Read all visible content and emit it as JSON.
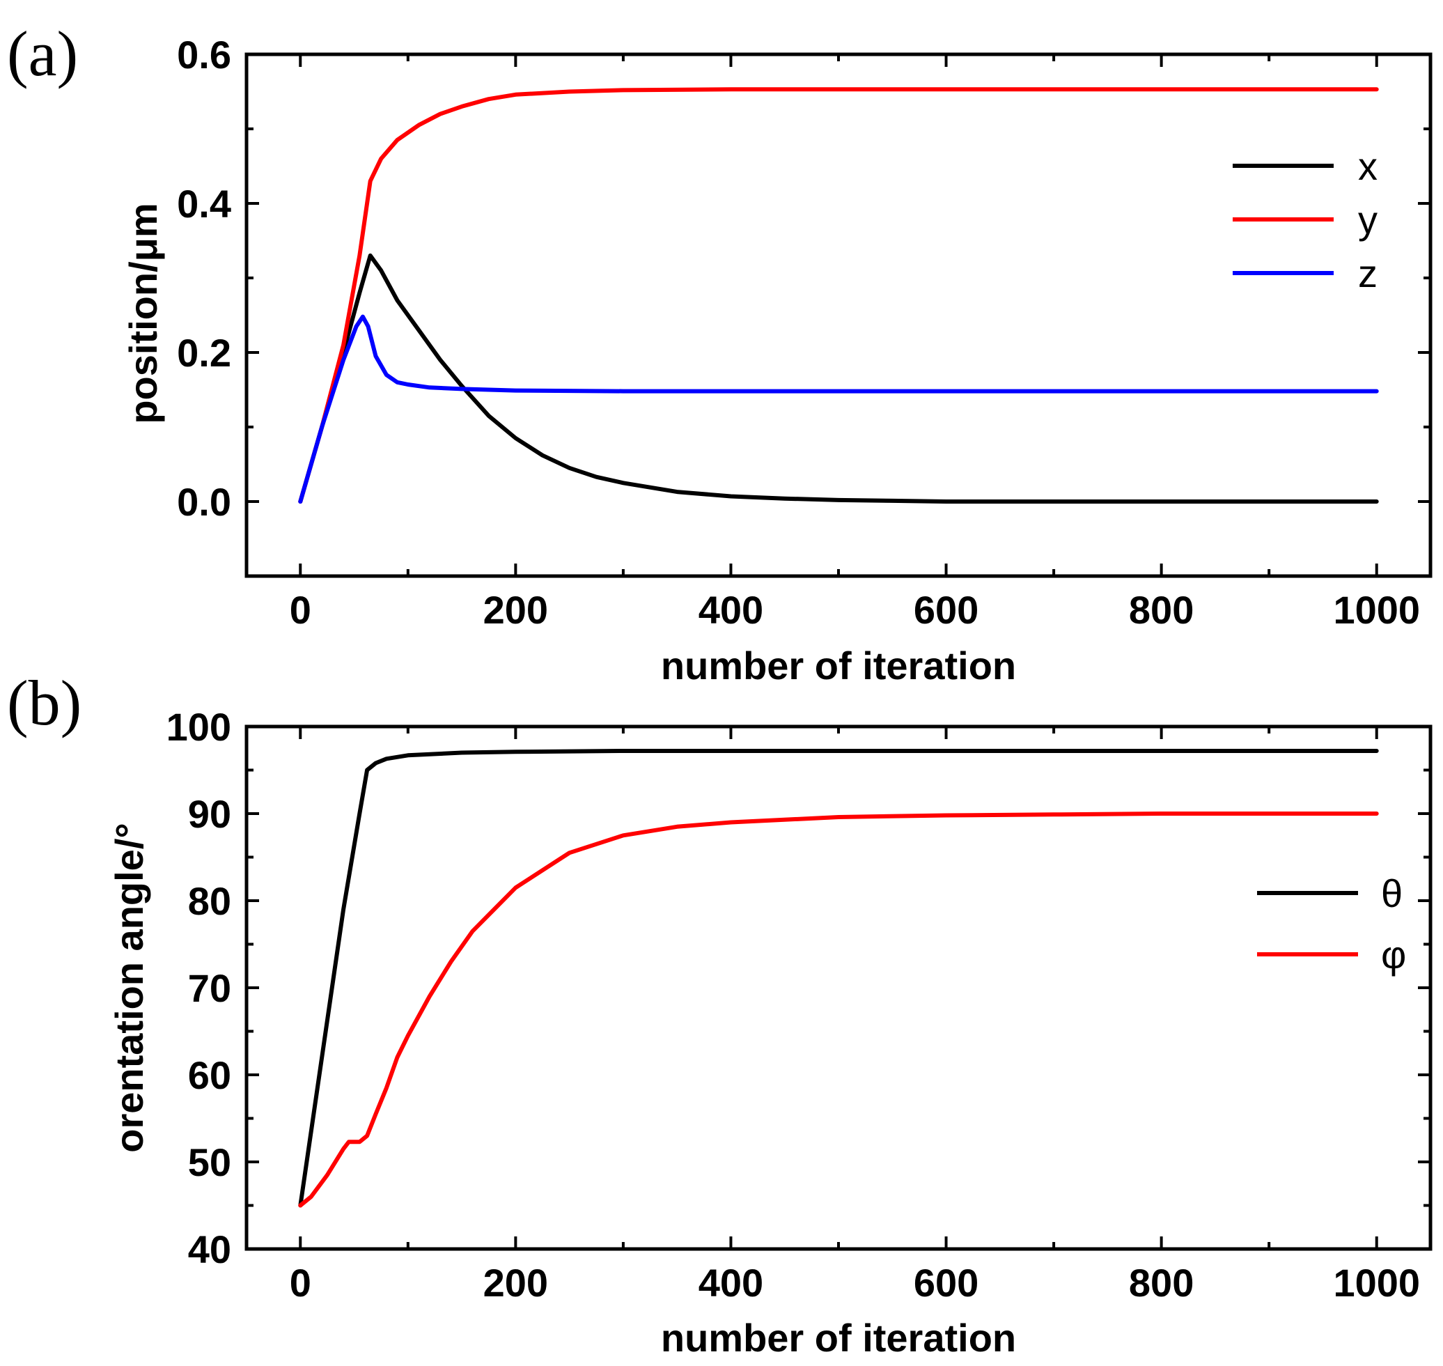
{
  "chart_data": [
    {
      "type": "line",
      "panel_label": "(a)",
      "title": "",
      "xlabel": "number of iteration",
      "ylabel": "position/μm",
      "xlim": [
        -50,
        1050
      ],
      "ylim": [
        -0.1,
        0.6
      ],
      "xticks": [
        0,
        200,
        400,
        600,
        800,
        1000
      ],
      "xtick_labels": [
        "0",
        "200",
        "400",
        "600",
        "800",
        "1000"
      ],
      "yticks": [
        0.0,
        0.2,
        0.4,
        0.6
      ],
      "ytick_labels": [
        "0.0",
        "0.2",
        "0.4",
        "0.6"
      ],
      "legend_position": "top-right",
      "grid": false,
      "series": [
        {
          "name": "x",
          "color": "#000000",
          "x": [
            0,
            20,
            40,
            55,
            65,
            75,
            90,
            110,
            130,
            150,
            175,
            200,
            225,
            250,
            275,
            300,
            350,
            400,
            450,
            500,
            550,
            600,
            700,
            800,
            900,
            1000
          ],
          "y": [
            0.0,
            0.1,
            0.2,
            0.28,
            0.33,
            0.31,
            0.27,
            0.23,
            0.19,
            0.155,
            0.115,
            0.085,
            0.062,
            0.045,
            0.033,
            0.025,
            0.013,
            0.007,
            0.004,
            0.002,
            0.001,
            0.0,
            0.0,
            0.0,
            0.0,
            0.0
          ]
        },
        {
          "name": "y",
          "color": "#ff0000",
          "x": [
            0,
            20,
            40,
            55,
            65,
            75,
            90,
            110,
            130,
            150,
            175,
            200,
            250,
            300,
            400,
            500,
            600,
            700,
            800,
            900,
            1000
          ],
          "y": [
            0.0,
            0.1,
            0.21,
            0.33,
            0.43,
            0.46,
            0.485,
            0.505,
            0.52,
            0.53,
            0.54,
            0.546,
            0.55,
            0.552,
            0.553,
            0.553,
            0.553,
            0.553,
            0.553,
            0.553,
            0.553
          ]
        },
        {
          "name": "z",
          "color": "#0000ff",
          "x": [
            0,
            20,
            40,
            52,
            58,
            63,
            70,
            80,
            90,
            100,
            120,
            150,
            200,
            300,
            400,
            600,
            800,
            1000
          ],
          "y": [
            0.0,
            0.1,
            0.19,
            0.235,
            0.248,
            0.235,
            0.195,
            0.17,
            0.16,
            0.157,
            0.153,
            0.151,
            0.149,
            0.148,
            0.148,
            0.148,
            0.148,
            0.148
          ]
        }
      ]
    },
    {
      "type": "line",
      "panel_label": "(b)",
      "title": "",
      "xlabel": "number of iteration",
      "ylabel": "orentation angle/°",
      "xlim": [
        -50,
        1050
      ],
      "ylim": [
        40,
        100
      ],
      "xticks": [
        0,
        200,
        400,
        600,
        800,
        1000
      ],
      "xtick_labels": [
        "0",
        "200",
        "400",
        "600",
        "800",
        "1000"
      ],
      "yticks": [
        40,
        50,
        60,
        70,
        80,
        90,
        100
      ],
      "ytick_labels": [
        "40",
        "50",
        "60",
        "70",
        "80",
        "90",
        "100"
      ],
      "legend_position": "center-right",
      "grid": false,
      "series": [
        {
          "name": "θ",
          "color": "#000000",
          "x": [
            0,
            20,
            40,
            55,
            62,
            70,
            80,
            100,
            150,
            200,
            300,
            400,
            600,
            800,
            1000
          ],
          "y": [
            45,
            62,
            79,
            90,
            95,
            95.8,
            96.3,
            96.7,
            97,
            97.1,
            97.2,
            97.2,
            97.2,
            97.2,
            97.2
          ]
        },
        {
          "name": "φ",
          "color": "#ff0000",
          "x": [
            0,
            10,
            25,
            40,
            45,
            55,
            62,
            70,
            80,
            90,
            100,
            120,
            140,
            160,
            180,
            200,
            250,
            300,
            350,
            400,
            500,
            600,
            700,
            800,
            900,
            1000
          ],
          "y": [
            45,
            46,
            48.5,
            51.5,
            52.3,
            52.3,
            53,
            55.5,
            58.5,
            62,
            64.5,
            69,
            73,
            76.5,
            79,
            81.5,
            85.5,
            87.5,
            88.5,
            89,
            89.6,
            89.8,
            89.9,
            90,
            90,
            90
          ]
        }
      ]
    }
  ]
}
